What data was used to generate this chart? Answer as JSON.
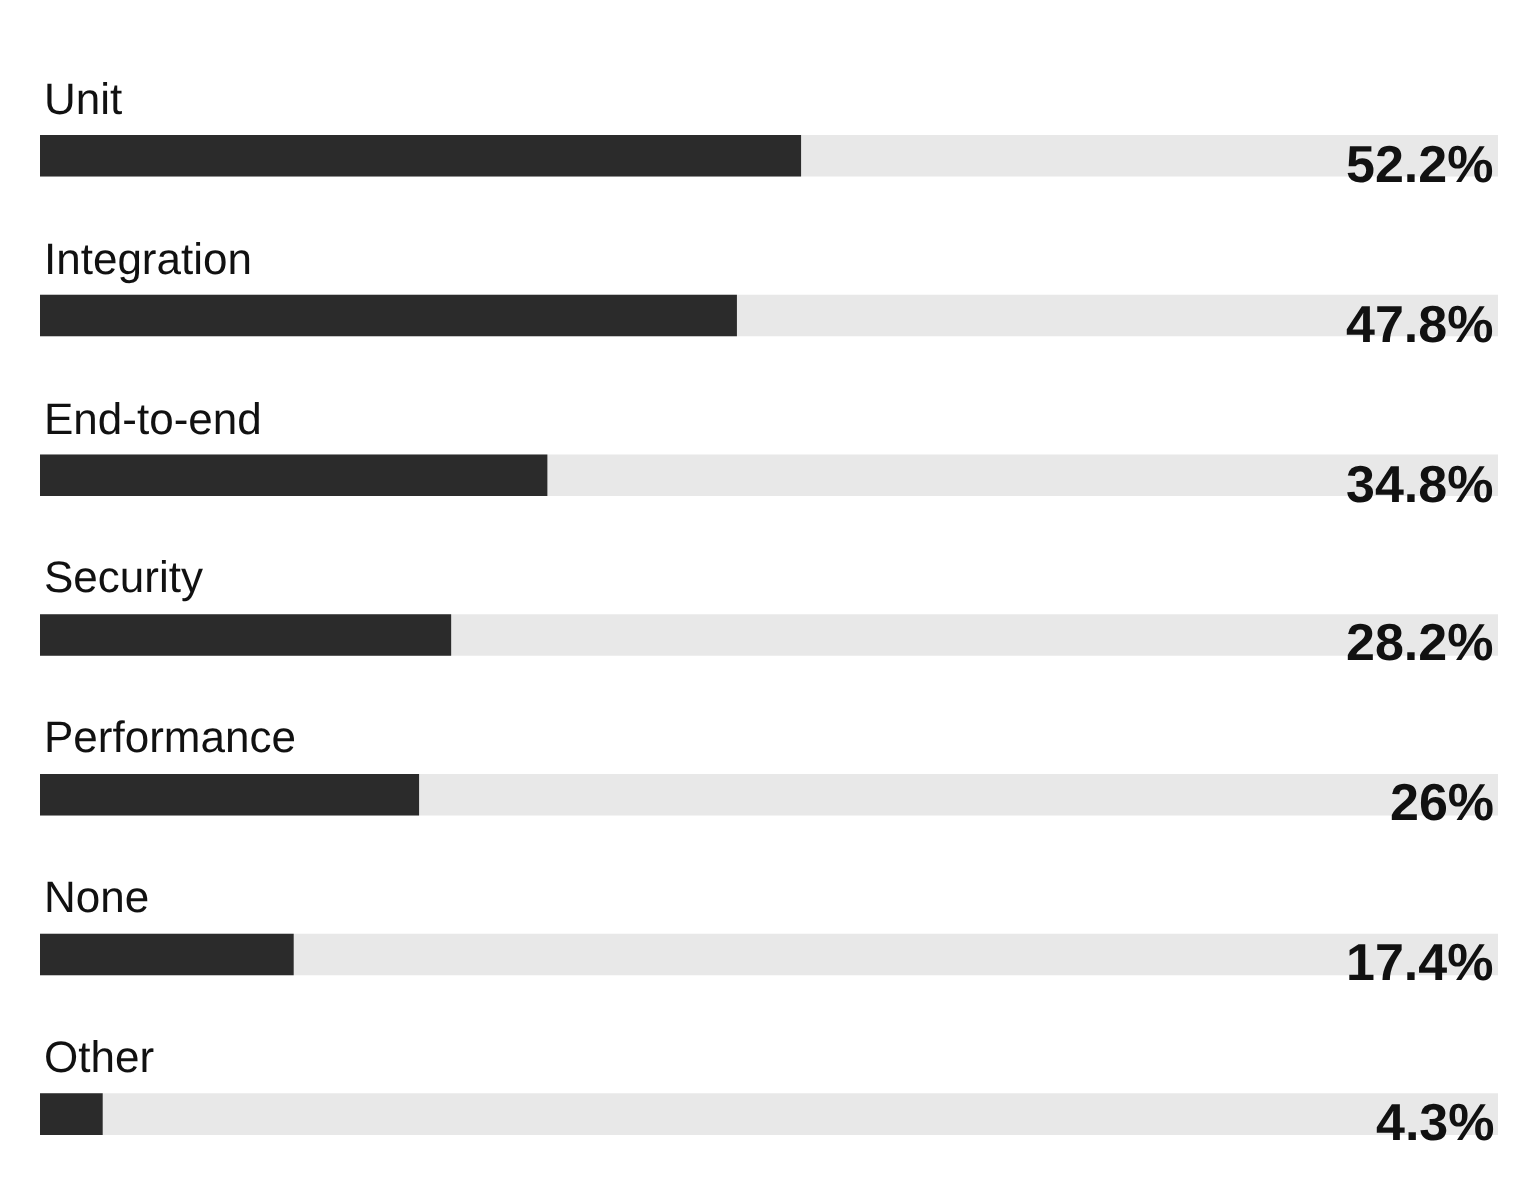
{
  "chart_data": {
    "type": "bar",
    "orientation": "horizontal",
    "categories": [
      "Unit",
      "Integration",
      "End-to-end",
      "Security",
      "Performance",
      "None",
      "Other"
    ],
    "values": [
      52.2,
      47.8,
      34.8,
      28.2,
      26,
      17.4,
      4.3
    ],
    "value_labels": [
      "52.2%",
      "47.8%",
      "34.8%",
      "28.2%",
      "26%",
      "17.4%",
      "4.3%"
    ],
    "color": "#2b2b2b",
    "xlim": [
      0,
      100
    ],
    "tick_labels": false,
    "legend": false
  }
}
